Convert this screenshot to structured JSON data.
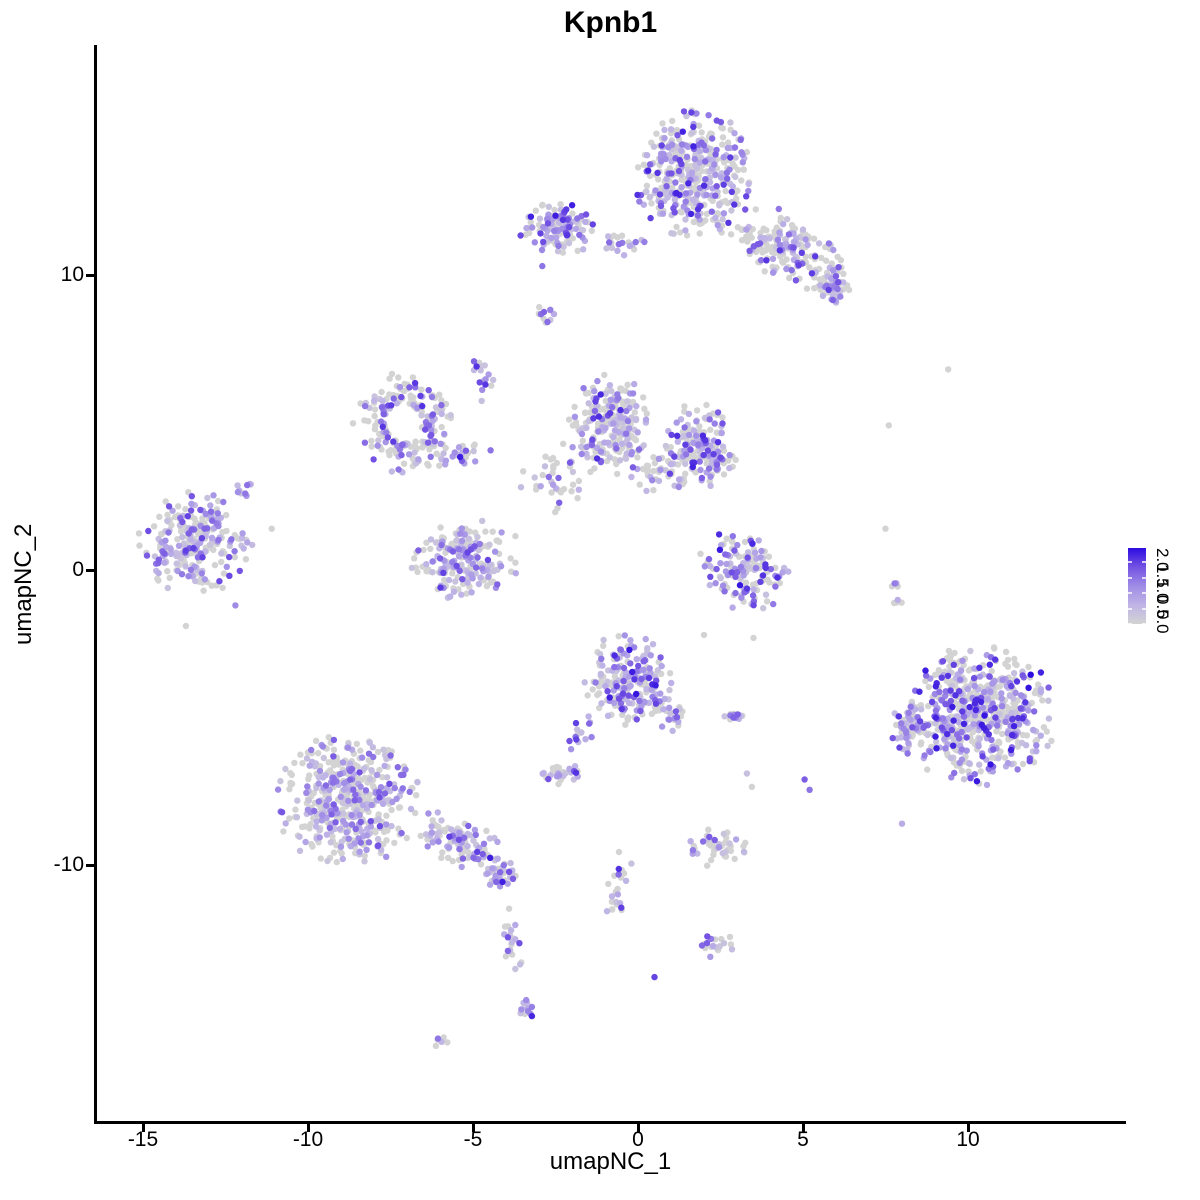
{
  "chart_data": {
    "type": "scatter",
    "title": "Kpnb1",
    "xlabel": "umapNC_1",
    "ylabel": "umapNC_2",
    "xlim": [
      -16.5,
      14.8
    ],
    "ylim": [
      -18.7,
      17.8
    ],
    "grid": false,
    "legend": {
      "position": "right",
      "labels": [
        "2.0",
        "1.5",
        "1.0",
        "0.5",
        "0.0"
      ],
      "orientation": "vertical-colorbar",
      "label_rotation_deg": 90
    },
    "color_scale": {
      "type": "gradient",
      "domain": [
        0,
        2
      ],
      "low_color": "#d3d3d3",
      "high_color": "#2d0ce0",
      "stops": [
        [
          0,
          "#d3d3d3"
        ],
        [
          0.25,
          "#bfb4e6"
        ],
        [
          0.5,
          "#a08ce6"
        ],
        [
          0.75,
          "#7352e3"
        ],
        [
          1,
          "#2d0ce0"
        ]
      ]
    },
    "x_ticks": [
      {
        "v": -15,
        "label": "-15"
      },
      {
        "v": -10,
        "label": "-10"
      },
      {
        "v": -5,
        "label": "-5"
      },
      {
        "v": 0,
        "label": "0"
      },
      {
        "v": 5,
        "label": "5"
      },
      {
        "v": 10,
        "label": "10"
      }
    ],
    "y_ticks": [
      {
        "v": 10,
        "label": "10"
      },
      {
        "v": 0,
        "label": "0"
      },
      {
        "v": -10,
        "label": "-10"
      }
    ],
    "point_radius_px": 3.2,
    "clusters": [
      {
        "name": "top-main",
        "x": 1.7,
        "y": 13.4,
        "sx": 0.85,
        "sy": 1.05,
        "n": 420,
        "frac": 0.5,
        "hi": 0.8
      },
      {
        "name": "top-arm",
        "x": 4.6,
        "y": 10.9,
        "sx": 0.95,
        "sy": 0.5,
        "rot": -33,
        "n": 190,
        "frac": 0.45,
        "hi": 0.75
      },
      {
        "name": "top-arm-end",
        "x": 5.9,
        "y": 9.6,
        "sx": 0.3,
        "sy": 0.3,
        "n": 45,
        "frac": 0.6,
        "hi": 0.8
      },
      {
        "name": "upper-left",
        "x": -2.3,
        "y": 11.6,
        "sx": 0.6,
        "sy": 0.4,
        "n": 120,
        "frac": 0.6,
        "hi": 0.85
      },
      {
        "name": "upper-left-chain",
        "x": -0.6,
        "y": 11.0,
        "sx": 0.45,
        "sy": 0.18,
        "n": 22,
        "frac": 0.5,
        "hi": 0.6
      },
      {
        "name": "tiny-blob",
        "x": -2.8,
        "y": 8.7,
        "sx": 0.15,
        "sy": 0.18,
        "n": 11,
        "frac": 0.7,
        "hi": 0.7
      },
      {
        "name": "streak-up",
        "x": -4.7,
        "y": 6.6,
        "sx": 0.15,
        "sy": 0.45,
        "n": 16,
        "frac": 0.75,
        "hi": 0.8
      },
      {
        "name": "left-ring",
        "x": -7.1,
        "y": 5.0,
        "sx": 0.7,
        "sy": 0.8,
        "n": 190,
        "frac": 0.5,
        "hi": 0.75,
        "hole": 0.8
      },
      {
        "name": "ring-chain",
        "x": -5.4,
        "y": 3.9,
        "sx": 0.5,
        "sy": 0.2,
        "rot": 15,
        "n": 28,
        "frac": 0.6,
        "hi": 0.85
      },
      {
        "name": "mid-sparse",
        "x": -2.6,
        "y": 3.2,
        "sx": 0.65,
        "sy": 0.6,
        "n": 40,
        "frac": 0.3,
        "hi": 0.6
      },
      {
        "name": "mid-cluster",
        "x": -0.9,
        "y": 4.9,
        "sx": 0.6,
        "sy": 0.8,
        "n": 240,
        "frac": 0.5,
        "hi": 0.8
      },
      {
        "name": "mid-right-cluster",
        "x": 1.8,
        "y": 4.1,
        "sx": 0.55,
        "sy": 0.7,
        "n": 190,
        "frac": 0.55,
        "hi": 0.8
      },
      {
        "name": "bridge",
        "x": 0.5,
        "y": 3.3,
        "sx": 0.45,
        "sy": 0.3,
        "n": 30,
        "frac": 0.3,
        "hi": 0.5
      },
      {
        "name": "far-left",
        "x": -13.4,
        "y": 0.9,
        "sx": 0.8,
        "sy": 0.8,
        "n": 250,
        "frac": 0.55,
        "hi": 0.7
      },
      {
        "name": "far-left-sat",
        "x": -11.9,
        "y": 2.7,
        "sx": 0.16,
        "sy": 0.13,
        "n": 10,
        "frac": 0.8,
        "hi": 0.7
      },
      {
        "name": "mid-low",
        "x": -5.2,
        "y": 0.4,
        "sx": 0.8,
        "sy": 0.65,
        "n": 210,
        "frac": 0.5,
        "hi": 0.75
      },
      {
        "name": "right-band",
        "x": 3.2,
        "y": 0.0,
        "sx": 0.7,
        "sy": 0.6,
        "rot": -40,
        "n": 140,
        "frac": 0.5,
        "hi": 0.85
      },
      {
        "name": "center-bottom",
        "x": -0.3,
        "y": -3.7,
        "sx": 0.6,
        "sy": 0.75,
        "n": 220,
        "frac": 0.6,
        "hi": 0.85
      },
      {
        "name": "center-bottom-tail",
        "x": 1.0,
        "y": -4.9,
        "sx": 0.3,
        "sy": 0.25,
        "rot": -30,
        "n": 25,
        "frac": 0.4,
        "hi": 0.6
      },
      {
        "name": "streak-down",
        "x": -1.7,
        "y": -5.6,
        "sx": 0.18,
        "sy": 0.45,
        "rot": -25,
        "n": 16,
        "frac": 0.8,
        "hi": 0.7
      },
      {
        "name": "small-blob",
        "x": -2.3,
        "y": -6.9,
        "sx": 0.28,
        "sy": 0.2,
        "n": 30,
        "frac": 0.6,
        "hi": 0.75
      },
      {
        "name": "small-right-blob",
        "x": 2.9,
        "y": -4.9,
        "sx": 0.28,
        "sy": 0.13,
        "n": 15,
        "frac": 0.6,
        "hi": 0.85
      },
      {
        "name": "bottom-left-big",
        "x": -8.8,
        "y": -7.8,
        "sx": 1.0,
        "sy": 1.05,
        "n": 480,
        "frac": 0.5,
        "hi": 0.65
      },
      {
        "name": "bottom-left-arm",
        "x": -5.4,
        "y": -9.2,
        "sx": 0.7,
        "sy": 0.4,
        "rot": -28,
        "n": 110,
        "frac": 0.5,
        "hi": 0.7
      },
      {
        "name": "bottom-left-armblob",
        "x": -4.2,
        "y": -10.3,
        "sx": 0.28,
        "sy": 0.28,
        "n": 40,
        "frac": 0.7,
        "hi": 0.85
      },
      {
        "name": "bottom-tail",
        "x": -3.8,
        "y": -12.6,
        "sx": 0.16,
        "sy": 0.7,
        "n": 22,
        "frac": 0.6,
        "hi": 0.7
      },
      {
        "name": "bottom-tail-blob",
        "x": -3.5,
        "y": -14.9,
        "sx": 0.16,
        "sy": 0.18,
        "n": 12,
        "frac": 0.7,
        "hi": 0.8
      },
      {
        "name": "tiny-bottom",
        "x": -6.1,
        "y": -16.0,
        "sx": 0.18,
        "sy": 0.1,
        "n": 7,
        "frac": 0.5,
        "hi": 0.6
      },
      {
        "name": "center-chain",
        "x": -0.6,
        "y": -10.8,
        "sx": 0.18,
        "sy": 0.8,
        "rot": -10,
        "n": 24,
        "frac": 0.5,
        "hi": 0.75
      },
      {
        "name": "arc-blob",
        "x": 2.4,
        "y": -9.4,
        "sx": 0.45,
        "sy": 0.3,
        "n": 45,
        "frac": 0.5,
        "hi": 0.75
      },
      {
        "name": "v-blob",
        "x": 2.3,
        "y": -12.7,
        "sx": 0.28,
        "sy": 0.2,
        "n": 18,
        "frac": 0.7,
        "hi": 0.8
      },
      {
        "name": "bottom-right-big",
        "x": 10.3,
        "y": -4.9,
        "sx": 1.1,
        "sy": 1.1,
        "n": 620,
        "frac": 0.55,
        "hi": 0.85
      },
      {
        "name": "bottom-right-west",
        "x": 8.2,
        "y": -5.4,
        "sx": 0.3,
        "sy": 0.38,
        "n": 50,
        "frac": 0.7,
        "hi": 0.75
      },
      {
        "name": "bottom-right-chain",
        "x": 7.8,
        "y": -0.9,
        "sx": 0.13,
        "sy": 0.5,
        "n": 10,
        "frac": 0.4,
        "hi": 0.7
      }
    ],
    "singles": [
      {
        "x": 7.6,
        "y": 4.9,
        "t": 0
      },
      {
        "x": 9.4,
        "y": 6.8,
        "t": 0
      },
      {
        "x": 11.9,
        "y": -3.55,
        "t": 1
      },
      {
        "x": 0.5,
        "y": -13.8,
        "t": 0.8
      },
      {
        "x": 3.3,
        "y": -6.9,
        "t": 0.15
      },
      {
        "x": 3.45,
        "y": -7.35,
        "t": 0
      },
      {
        "x": 5.05,
        "y": -7.1,
        "t": 0.7
      },
      {
        "x": 5.2,
        "y": -7.45,
        "t": 0.6
      },
      {
        "x": -11.1,
        "y": 1.4,
        "t": 0
      },
      {
        "x": -12.2,
        "y": -1.2,
        "t": 0.5
      },
      {
        "x": -13.7,
        "y": -1.9,
        "t": 0
      },
      {
        "x": 2.0,
        "y": -2.2,
        "t": 0
      },
      {
        "x": 3.5,
        "y": -2.3,
        "t": 0
      },
      {
        "x": 8.0,
        "y": -8.6,
        "t": 0.3
      },
      {
        "x": 7.5,
        "y": 1.4,
        "t": 0
      },
      {
        "x": -2.9,
        "y": 10.3,
        "t": 0.6
      }
    ]
  }
}
